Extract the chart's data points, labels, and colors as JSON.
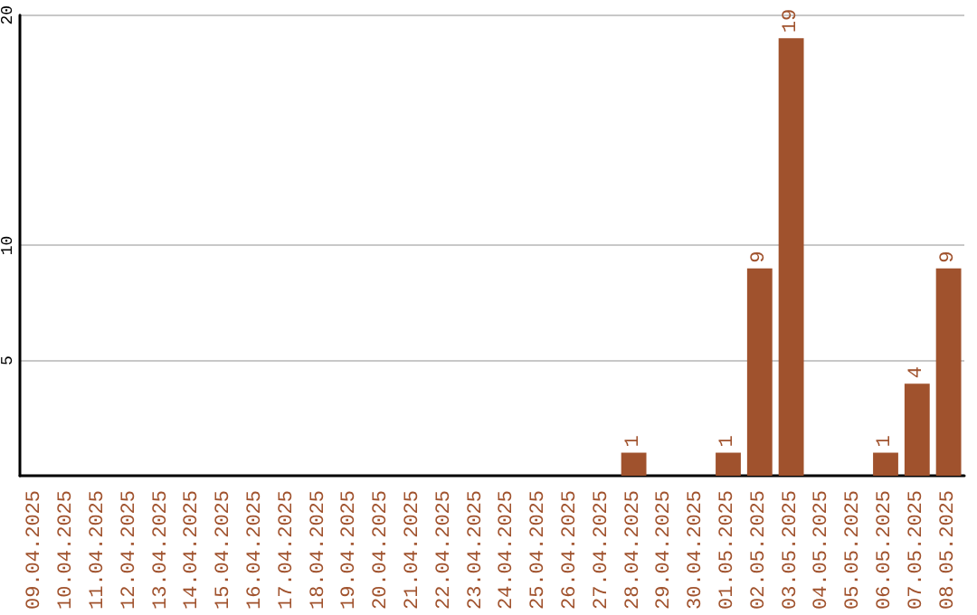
{
  "chart_data": {
    "type": "bar",
    "categories": [
      "09.04.2025",
      "10.04.2025",
      "11.04.2025",
      "12.04.2025",
      "13.04.2025",
      "14.04.2025",
      "15.04.2025",
      "16.04.2025",
      "17.04.2025",
      "18.04.2025",
      "19.04.2025",
      "20.04.2025",
      "21.04.2025",
      "22.04.2025",
      "23.04.2025",
      "24.04.2025",
      "25.04.2025",
      "26.04.2025",
      "27.04.2025",
      "28.04.2025",
      "29.04.2025",
      "30.04.2025",
      "01.05.2025",
      "02.05.2025",
      "03.05.2025",
      "04.05.2025",
      "05.05.2025",
      "06.05.2025",
      "07.05.2025",
      "08.05.2025"
    ],
    "values": [
      0,
      0,
      0,
      0,
      0,
      0,
      0,
      0,
      0,
      0,
      0,
      0,
      0,
      0,
      0,
      0,
      0,
      0,
      0,
      1,
      0,
      0,
      1,
      9,
      19,
      0,
      0,
      1,
      4,
      9
    ],
    "value_labels": [
      null,
      null,
      null,
      null,
      null,
      null,
      null,
      null,
      null,
      null,
      null,
      null,
      null,
      null,
      null,
      null,
      null,
      null,
      null,
      "1",
      null,
      null,
      "1",
      "9",
      "19",
      null,
      null,
      "1",
      "4",
      "9"
    ],
    "color": "#a0522d",
    "ylim": [
      0,
      20
    ],
    "yticks": [
      5,
      10,
      20
    ],
    "grid": "y"
  }
}
